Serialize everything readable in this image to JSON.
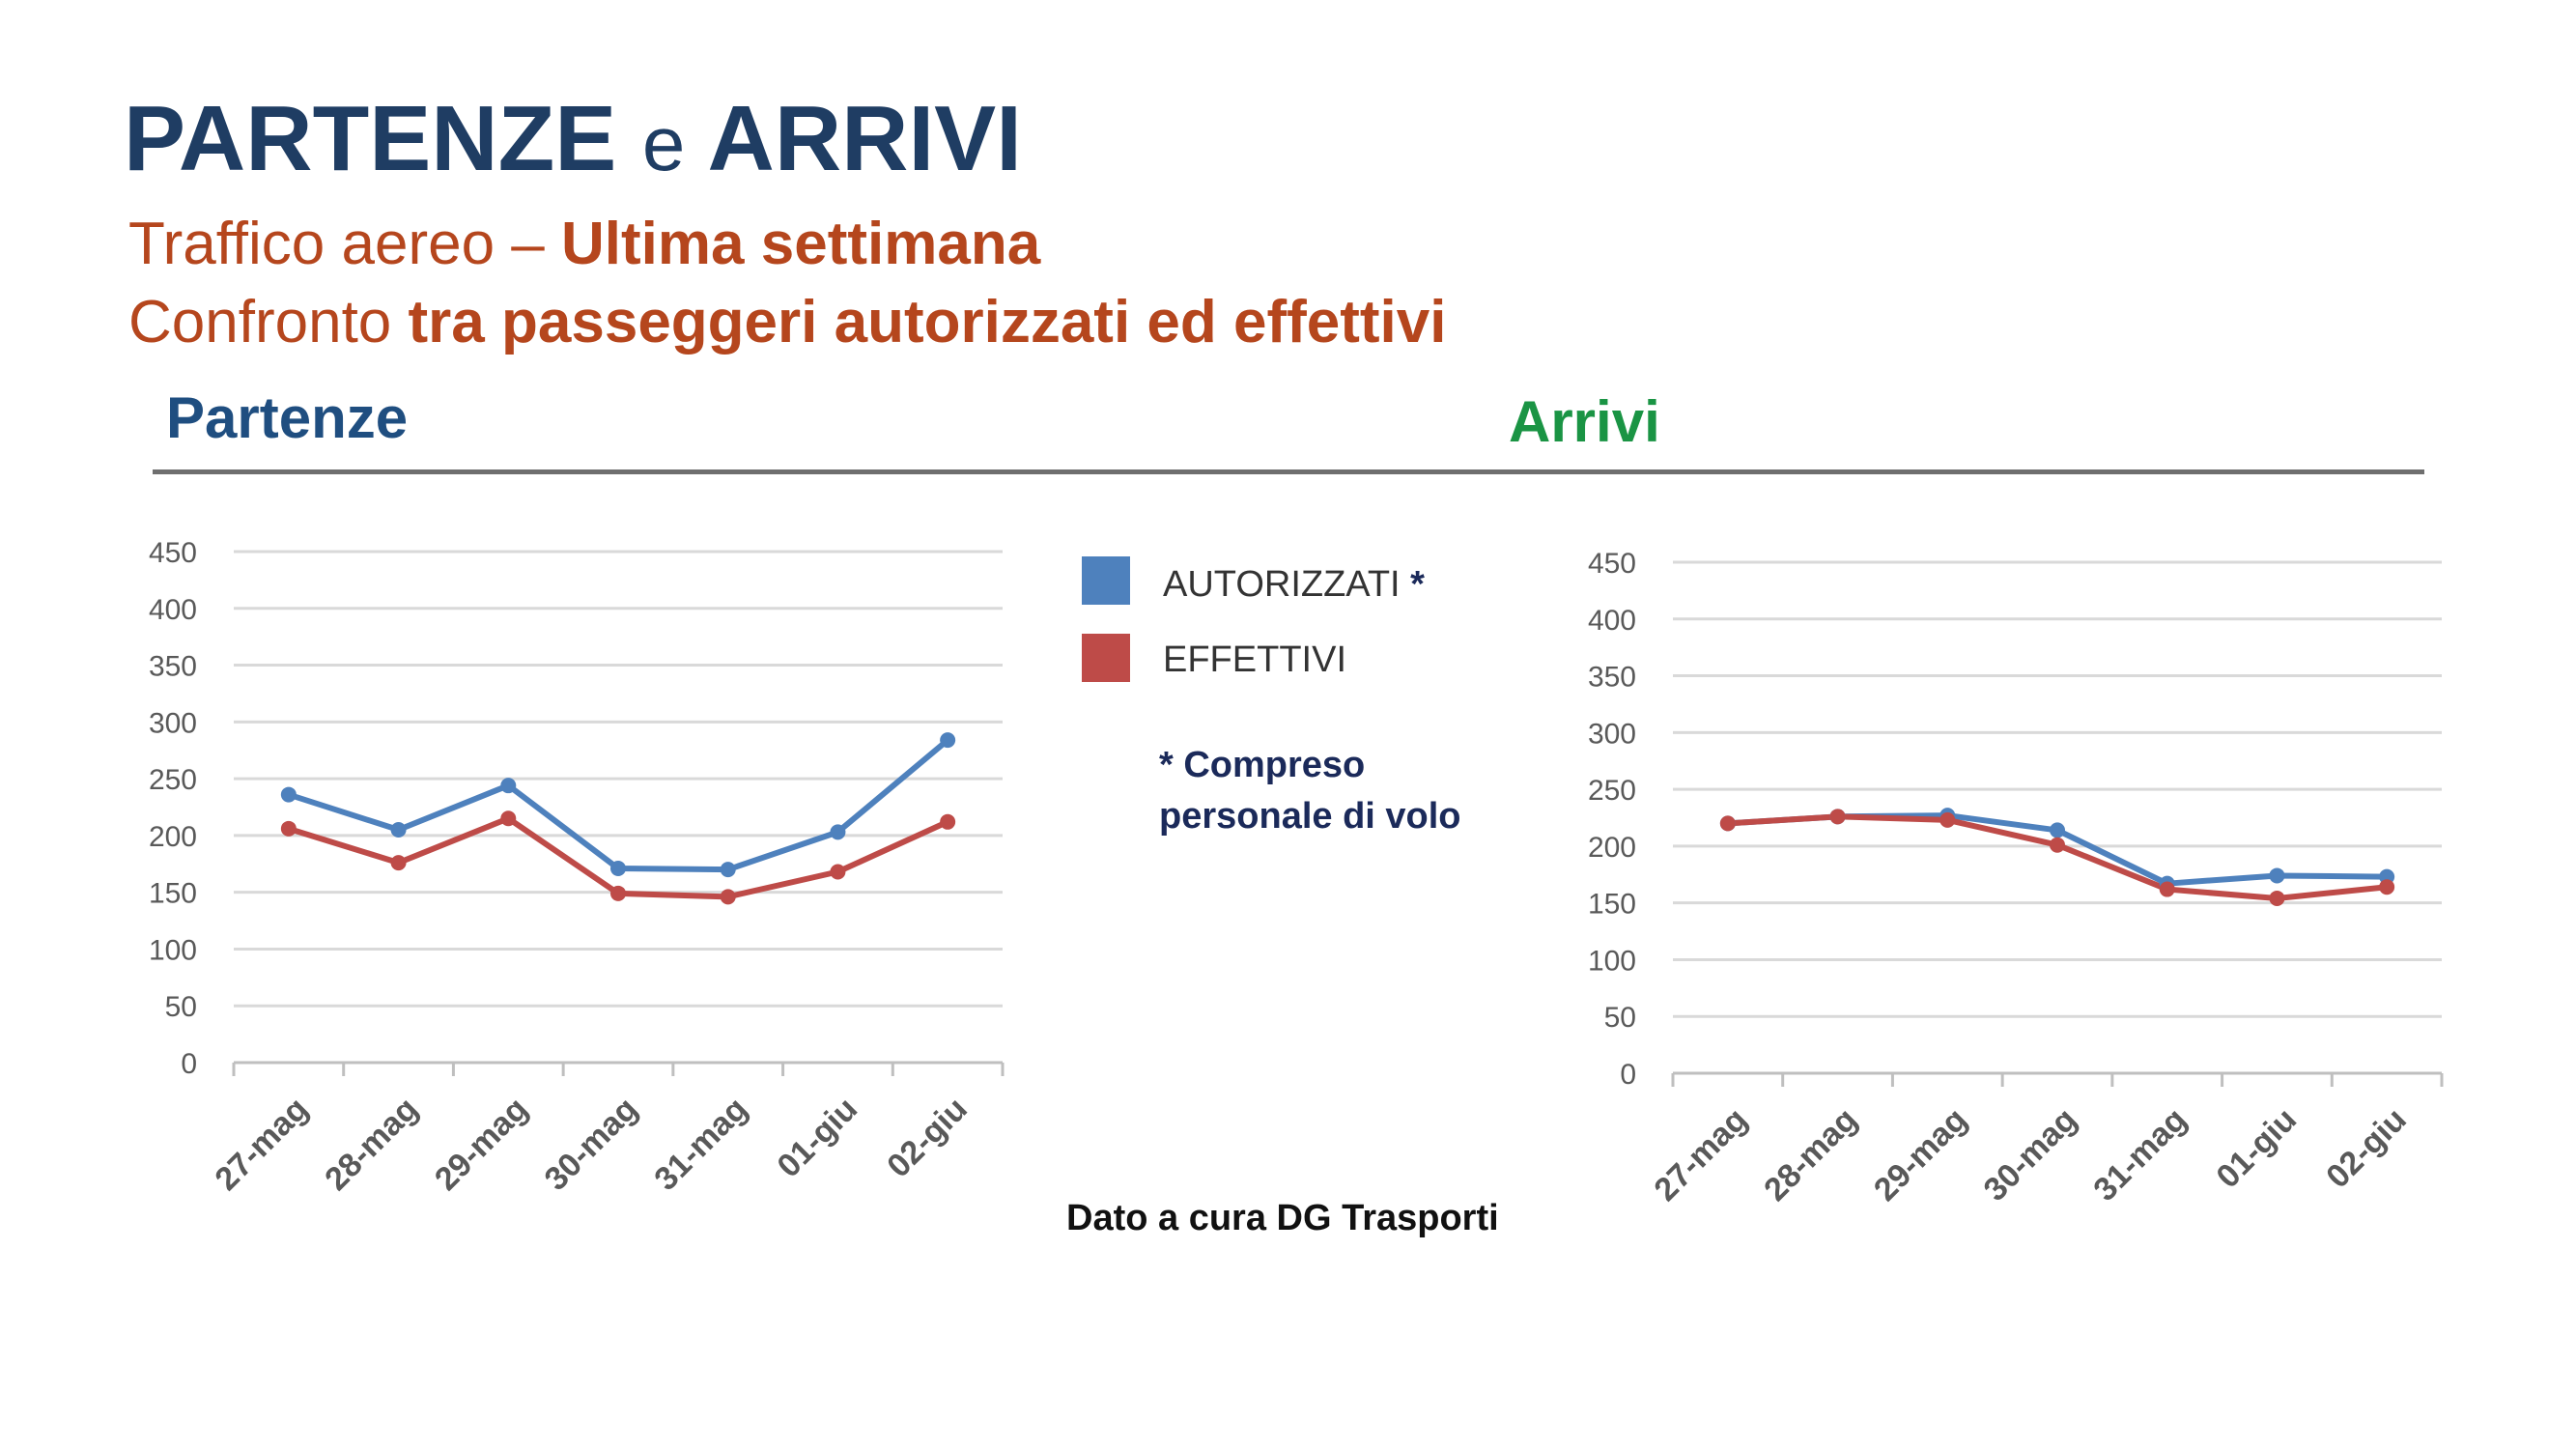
{
  "header": {
    "title_part1": "PARTENZE",
    "title_part2": "e",
    "title_part3": "ARRIVI",
    "subtitle1_normal": "Traffico aereo – ",
    "subtitle1_bold": "Ultima settimana",
    "subtitle2_normal": "Confronto ",
    "subtitle2_bold": "tra passeggeri autorizzati ed effettivi"
  },
  "sections": {
    "left_title": "Partenze",
    "right_title": "Arrivi"
  },
  "legend": {
    "item1": "AUTORIZZATI",
    "item1_mark": "*",
    "item2": "EFFETTIVI",
    "note_line1": "* Compreso",
    "note_line2": "personale di volo"
  },
  "source": "Dato a cura DG Trasporti",
  "colors": {
    "autorizzati": "#4e81bd",
    "effettivi": "#be4b48",
    "title": "#1f3d63",
    "subtitle": "#b5461d",
    "partenze": "#1f4e80",
    "arrivi": "#1a9444"
  },
  "chart_data": [
    {
      "type": "line",
      "categories": [
        "27-mag",
        "28-mag",
        "29-mag",
        "30-mag",
        "31-mag",
        "01-giu",
        "02-giu"
      ],
      "series": [
        {
          "name": "AUTORIZZATI",
          "values": [
            236,
            205,
            244,
            171,
            170,
            203,
            284
          ]
        },
        {
          "name": "EFFETTIVI",
          "values": [
            206,
            176,
            215,
            149,
            146,
            168,
            212
          ]
        }
      ],
      "ylim": [
        0,
        450
      ],
      "yticks": [
        0,
        50,
        100,
        150,
        200,
        250,
        300,
        350,
        400,
        450
      ],
      "grid": true,
      "legend": "right"
    },
    {
      "type": "line",
      "categories": [
        "27-mag",
        "28-mag",
        "29-mag",
        "30-mag",
        "31-mag",
        "01-giu",
        "02-giu"
      ],
      "series": [
        {
          "name": "AUTORIZZATI",
          "values": [
            220,
            226,
            227,
            214,
            167,
            174,
            173
          ]
        },
        {
          "name": "EFFETTIVI",
          "values": [
            220,
            226,
            223,
            201,
            162,
            154,
            164
          ]
        }
      ],
      "ylim": [
        0,
        450
      ],
      "yticks": [
        0,
        50,
        100,
        150,
        200,
        250,
        300,
        350,
        400,
        450
      ],
      "grid": true,
      "legend": "left"
    }
  ]
}
